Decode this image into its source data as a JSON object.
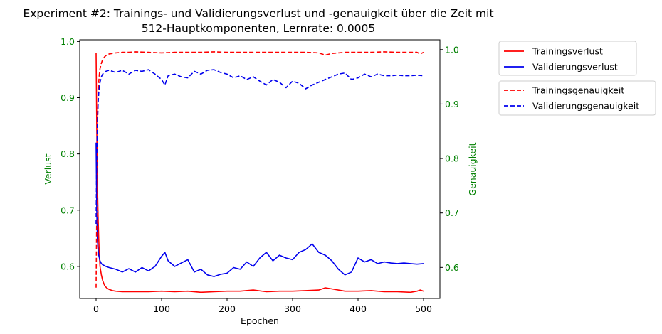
{
  "chart_data": {
    "type": "line",
    "title": "Experiment #2: Trainings- und Validierungsverlust und -genauigkeit über die Zeit mit",
    "subtitle": "512-Hauptkomponenten, Lernrate: 0.0005",
    "xlabel": "Epochen",
    "ylabel_left": "Verlust",
    "ylabel_right": "Genauigkeit",
    "xlim": [
      -25,
      525
    ],
    "ylim_left": [
      0.543,
      1.003
    ],
    "ylim_right": [
      0.543,
      1.018
    ],
    "x_ticks": [
      0,
      100,
      200,
      300,
      400,
      500
    ],
    "y_ticks_left": [
      0.6,
      0.7,
      0.8,
      0.9,
      1.0
    ],
    "y_ticks_right": [
      0.6,
      0.7,
      0.8,
      0.9,
      1.0
    ],
    "y_tick_labels_left": [
      "0.6",
      "0.7",
      "0.8",
      "0.9",
      "1.0"
    ],
    "y_tick_labels_right": [
      "0.6",
      "0.7",
      "0.8",
      "0.9",
      "1.0"
    ],
    "grid": false,
    "legend_placement": "outside-right",
    "colors": {
      "train": "#ff0000",
      "val": "#0000ee",
      "axis_label": "#008000",
      "tick_label_y": "#008000"
    },
    "series": [
      {
        "name": "Trainingsverlust",
        "axis": "left",
        "style": "solid",
        "color": "#ff0000",
        "x": [
          0,
          1,
          2,
          3,
          4,
          5,
          6,
          8,
          10,
          13,
          16,
          20,
          25,
          30,
          40,
          50,
          60,
          80,
          100,
          120,
          140,
          160,
          180,
          200,
          220,
          240,
          260,
          280,
          300,
          320,
          340,
          350,
          360,
          380,
          400,
          420,
          440,
          460,
          480,
          490,
          495,
          500
        ],
        "values": [
          0.98,
          0.85,
          0.75,
          0.69,
          0.65,
          0.62,
          0.6,
          0.585,
          0.575,
          0.566,
          0.562,
          0.559,
          0.557,
          0.556,
          0.555,
          0.555,
          0.555,
          0.555,
          0.556,
          0.555,
          0.556,
          0.554,
          0.555,
          0.556,
          0.556,
          0.558,
          0.555,
          0.556,
          0.556,
          0.557,
          0.558,
          0.562,
          0.56,
          0.556,
          0.556,
          0.557,
          0.555,
          0.555,
          0.554,
          0.556,
          0.558,
          0.556
        ]
      },
      {
        "name": "Validierungsverlust",
        "axis": "left",
        "style": "solid",
        "color": "#0000ee",
        "x": [
          0,
          1,
          2,
          3,
          4,
          5,
          6,
          8,
          10,
          15,
          20,
          30,
          40,
          50,
          60,
          70,
          80,
          90,
          100,
          105,
          110,
          120,
          130,
          140,
          150,
          160,
          170,
          180,
          190,
          200,
          210,
          220,
          230,
          240,
          250,
          260,
          270,
          280,
          290,
          300,
          310,
          320,
          330,
          340,
          350,
          360,
          370,
          380,
          390,
          400,
          410,
          420,
          430,
          440,
          450,
          460,
          470,
          480,
          490,
          500
        ],
        "values": [
          0.82,
          0.7,
          0.65,
          0.63,
          0.62,
          0.615,
          0.61,
          0.605,
          0.603,
          0.6,
          0.598,
          0.595,
          0.59,
          0.596,
          0.59,
          0.598,
          0.592,
          0.6,
          0.618,
          0.625,
          0.61,
          0.6,
          0.606,
          0.612,
          0.59,
          0.595,
          0.585,
          0.582,
          0.586,
          0.588,
          0.598,
          0.595,
          0.608,
          0.6,
          0.615,
          0.625,
          0.61,
          0.62,
          0.615,
          0.612,
          0.625,
          0.63,
          0.64,
          0.625,
          0.62,
          0.61,
          0.595,
          0.585,
          0.59,
          0.615,
          0.608,
          0.612,
          0.605,
          0.608,
          0.606,
          0.605,
          0.606,
          0.605,
          0.604,
          0.605
        ]
      },
      {
        "name": "Trainingsgenauigkeit",
        "axis": "right",
        "style": "dashed",
        "color": "#ff0000",
        "x": [
          0,
          1,
          2,
          3,
          4,
          5,
          6,
          8,
          10,
          13,
          16,
          20,
          25,
          30,
          40,
          50,
          60,
          80,
          100,
          120,
          140,
          160,
          180,
          200,
          220,
          240,
          260,
          280,
          300,
          320,
          340,
          350,
          360,
          380,
          400,
          420,
          440,
          460,
          480,
          490,
          495,
          500
        ],
        "values": [
          0.563,
          0.7,
          0.85,
          0.91,
          0.94,
          0.955,
          0.965,
          0.975,
          0.982,
          0.987,
          0.99,
          0.992,
          0.993,
          0.994,
          0.995,
          0.995,
          0.996,
          0.995,
          0.994,
          0.995,
          0.995,
          0.995,
          0.996,
          0.995,
          0.995,
          0.995,
          0.995,
          0.995,
          0.995,
          0.995,
          0.994,
          0.99,
          0.993,
          0.995,
          0.995,
          0.995,
          0.996,
          0.995,
          0.995,
          0.995,
          0.992,
          0.995
        ]
      },
      {
        "name": "Validierungsgenauigkeit",
        "axis": "right",
        "style": "dashed",
        "color": "#0000ee",
        "x": [
          0,
          1,
          2,
          3,
          4,
          5,
          6,
          8,
          10,
          15,
          20,
          30,
          40,
          50,
          60,
          70,
          80,
          90,
          100,
          105,
          110,
          120,
          130,
          140,
          150,
          160,
          170,
          180,
          190,
          200,
          210,
          220,
          230,
          240,
          250,
          260,
          270,
          280,
          290,
          300,
          310,
          320,
          330,
          340,
          350,
          360,
          370,
          380,
          390,
          400,
          410,
          420,
          430,
          440,
          450,
          460,
          470,
          480,
          490,
          500
        ],
        "values": [
          0.68,
          0.8,
          0.86,
          0.9,
          0.92,
          0.93,
          0.94,
          0.95,
          0.955,
          0.96,
          0.962,
          0.958,
          0.962,
          0.955,
          0.962,
          0.96,
          0.963,
          0.955,
          0.945,
          0.935,
          0.952,
          0.955,
          0.95,
          0.948,
          0.96,
          0.955,
          0.962,
          0.963,
          0.958,
          0.955,
          0.948,
          0.952,
          0.945,
          0.95,
          0.942,
          0.935,
          0.945,
          0.94,
          0.93,
          0.942,
          0.938,
          0.928,
          0.935,
          0.94,
          0.945,
          0.95,
          0.955,
          0.957,
          0.945,
          0.948,
          0.955,
          0.95,
          0.955,
          0.952,
          0.952,
          0.953,
          0.952,
          0.952,
          0.953,
          0.952
        ]
      }
    ]
  }
}
